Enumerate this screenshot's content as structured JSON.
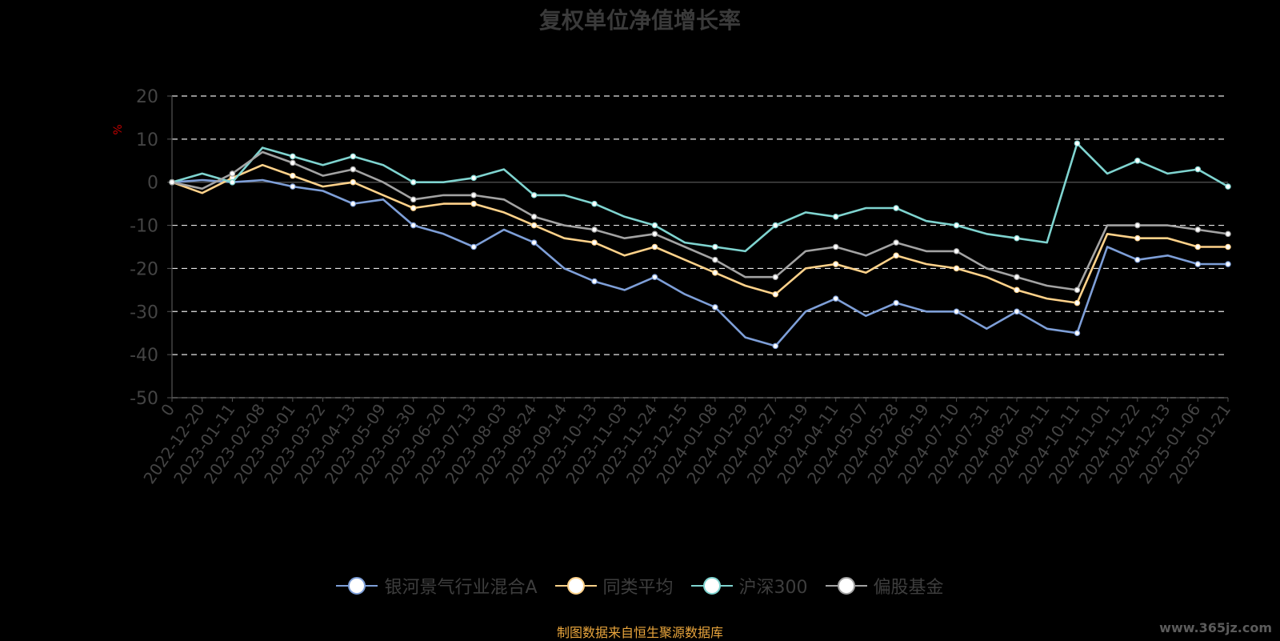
{
  "chart_data": {
    "type": "line",
    "title": "复权单位净值增长率",
    "ylabel": "%",
    "ylim": [
      -50,
      20
    ],
    "yticks": [
      "20",
      "10",
      "0",
      "-10",
      "-20",
      "-30",
      "-40",
      "-50"
    ],
    "grid": true,
    "legend_position": "bottom",
    "x_tick_labels": [
      "0",
      "2022-12-20",
      "2023-01-11",
      "2023-02-08",
      "2023-03-01",
      "2023-03-22",
      "2023-04-13",
      "2023-05-09",
      "2023-05-30",
      "2023-06-20",
      "2023-07-13",
      "2023-08-03",
      "2023-08-24",
      "2023-09-14",
      "2023-10-13",
      "2023-11-03",
      "2023-11-24",
      "2023-12-15",
      "2024-01-08",
      "2024-01-29",
      "2024-02-27",
      "2024-03-19",
      "2024-04-11",
      "2024-05-07",
      "2024-05-28",
      "2024-06-19",
      "2024-07-10",
      "2024-07-31",
      "2024-08-21",
      "2024-09-11",
      "2024-10-11",
      "2024-11-01",
      "2024-11-22",
      "2024-12-13",
      "2025-01-06",
      "2025-01-21"
    ],
    "x": [
      0,
      2,
      4,
      6,
      8,
      10,
      12,
      14,
      16,
      18,
      20,
      22,
      24,
      26,
      28,
      30,
      32,
      34,
      36,
      38,
      40,
      42,
      44,
      46,
      48,
      50,
      52,
      54,
      56,
      58,
      60,
      62,
      64,
      66,
      68,
      70
    ],
    "series": [
      {
        "name": "银河景气行业混合A",
        "color": "#7e9fd8",
        "values": [
          0,
          0.5,
          0,
          0.5,
          -1,
          -2,
          -5,
          -4,
          -10,
          -12,
          -15,
          -11,
          -14,
          -20,
          -23,
          -25,
          -22,
          -26,
          -29,
          -36,
          -38,
          -30,
          -27,
          -31,
          -28,
          -30,
          -30,
          -34,
          -30,
          -34,
          -35,
          -15,
          -18,
          -17,
          -19,
          -19
        ]
      },
      {
        "name": "同类平均",
        "color": "#ffd28a",
        "values": [
          0,
          -2.5,
          1,
          4,
          1.5,
          -1,
          0,
          -3,
          -6,
          -5,
          -5,
          -7,
          -10,
          -13,
          -14,
          -17,
          -15,
          -18,
          -21,
          -24,
          -26,
          -20,
          -19,
          -21,
          -17,
          -19,
          -20,
          -22,
          -25,
          -27,
          -28,
          -12,
          -13,
          -13,
          -15,
          -15
        ]
      },
      {
        "name": "沪深300",
        "color": "#7fd4d0",
        "values": [
          0,
          2,
          0,
          8,
          6,
          4,
          6,
          4,
          0,
          0,
          1,
          3,
          -3,
          -3,
          -5,
          -8,
          -10,
          -14,
          -15,
          -16,
          -10,
          -7,
          -8,
          -6,
          -6,
          -9,
          -10,
          -12,
          -13,
          -14,
          9,
          2,
          5,
          2,
          3,
          -1
        ]
      },
      {
        "name": "偏股基金",
        "color": "#a3a3a3",
        "values": [
          0,
          -1.5,
          2,
          7,
          4.5,
          1.5,
          3,
          0,
          -4,
          -3,
          -3,
          -4,
          -8,
          -10,
          -11,
          -13,
          -12,
          -15,
          -18,
          -22,
          -22,
          -16,
          -15,
          -17,
          -14,
          -16,
          -16,
          -20,
          -22,
          -24,
          -25,
          -10,
          -10,
          -10,
          -11,
          -12
        ]
      }
    ]
  },
  "source_note": "制图数据来自恒生聚源数据库",
  "watermark": "www.365jz.com"
}
